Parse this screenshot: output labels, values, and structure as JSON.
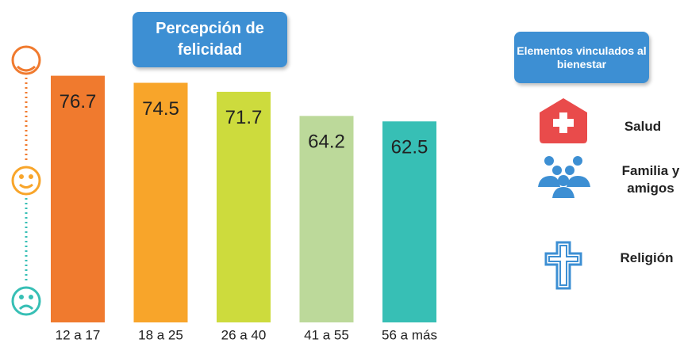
{
  "chart_data": {
    "type": "bar",
    "title": "Percepción de felicidad",
    "categories": [
      "12 a 17",
      "18 a 25",
      "26 a 40",
      "41 a 55",
      "56 a más"
    ],
    "values": [
      76.7,
      74.5,
      71.7,
      64.2,
      62.5
    ],
    "colors": [
      "#f07a2e",
      "#f8a52a",
      "#cddb3d",
      "#bcd99a",
      "#37bfb5"
    ]
  },
  "sidebar": {
    "title": "Elementos vinculados al bienestar",
    "items": [
      "Salud",
      "Familia y amigos",
      "Religión"
    ]
  }
}
